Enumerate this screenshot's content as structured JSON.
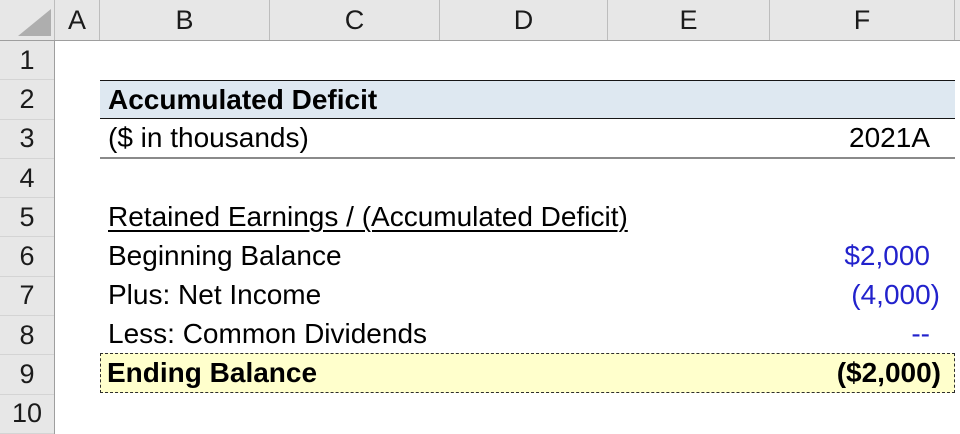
{
  "grid": {
    "columns": [
      "A",
      "B",
      "C",
      "D",
      "E",
      "F"
    ],
    "rows": [
      "1",
      "2",
      "3",
      "4",
      "5",
      "6",
      "7",
      "8",
      "9",
      "10"
    ]
  },
  "sheet": {
    "title": "Accumulated Deficit",
    "units_label": "($ in thousands)",
    "period_header": "2021A",
    "section_header": "Retained Earnings / (Accumulated Deficit)",
    "line_items": [
      {
        "label": "Beginning Balance",
        "value": "$2,000"
      },
      {
        "label": "Plus: Net Income",
        "value": "(4,000)"
      },
      {
        "label": "Less: Common Dividends",
        "value": "--"
      }
    ],
    "total": {
      "label": "Ending Balance",
      "value": "($2,000)"
    }
  },
  "colors": {
    "title_fill": "#dee8f1",
    "total_fill": "#ffffcc",
    "value_blue": "#2222cc",
    "header_fill": "#e7e7e7",
    "header_border": "#9e9e9e"
  }
}
